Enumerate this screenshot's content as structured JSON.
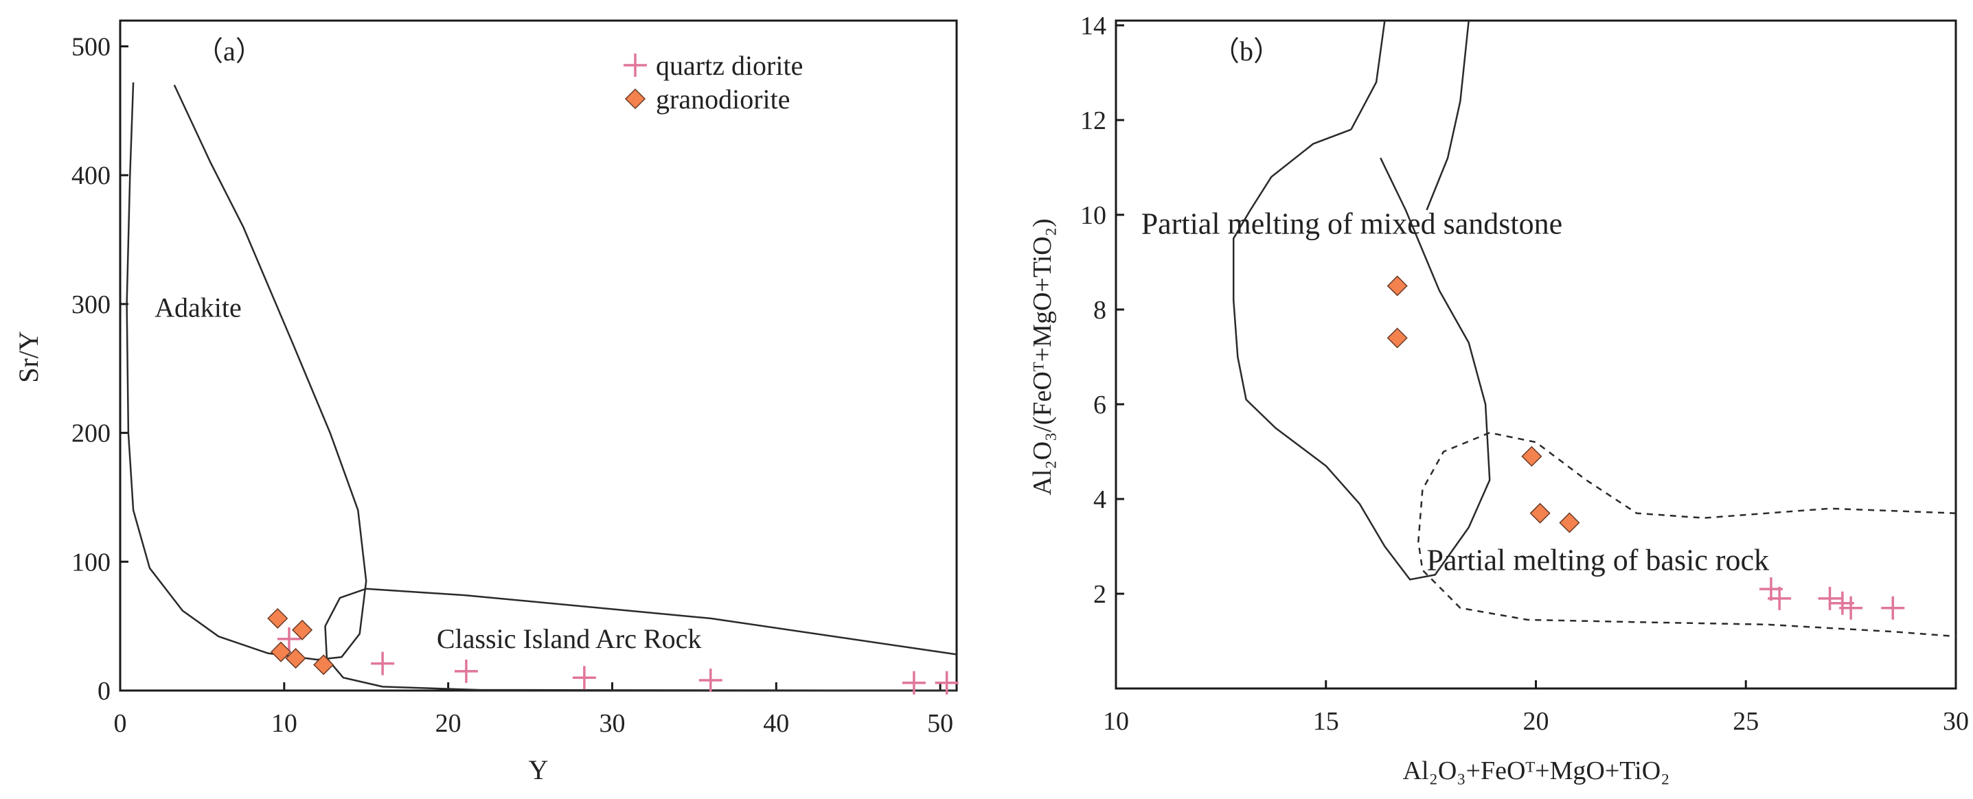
{
  "colors": {
    "axis": "#1a1a1a",
    "curve": "#2a2a2a",
    "quartz_diorite": "#e0769a",
    "granodiorite_fill": "#f4824f",
    "granodiorite_edge": "#6a3a25"
  },
  "chart_data": [
    {
      "type": "scatter",
      "panel_label": "（a）",
      "xlabel": "Y",
      "ylabel": "Sr/Y",
      "xlim": [
        0,
        51
      ],
      "ylim": [
        0,
        520
      ],
      "xticks": [
        0,
        10,
        20,
        30,
        40,
        50
      ],
      "yticks": [
        0,
        100,
        200,
        300,
        400,
        500
      ],
      "legend": {
        "position": "top-right",
        "entries": [
          {
            "name": "quartz diorite",
            "marker": "plus"
          },
          {
            "name": "granodiorite",
            "marker": "diamond"
          }
        ]
      },
      "annotations": [
        {
          "text": "Adakite",
          "x": 2.1,
          "y": 290
        },
        {
          "text": "Classic Island Arc Rock",
          "x": 19.3,
          "y": 33
        }
      ],
      "series": [
        {
          "name": "quartz diorite",
          "marker": "plus",
          "points": [
            [
              10.3,
              40
            ],
            [
              16,
              21
            ],
            [
              21.1,
              15
            ],
            [
              28.3,
              10
            ],
            [
              36,
              8
            ],
            [
              48.4,
              6
            ],
            [
              50.4,
              6
            ]
          ]
        },
        {
          "name": "granodiorite",
          "marker": "diamond",
          "points": [
            [
              9.6,
              56
            ],
            [
              11.1,
              47
            ],
            [
              9.8,
              30
            ],
            [
              10.7,
              25
            ],
            [
              12.4,
              20
            ]
          ]
        }
      ],
      "fields": [
        {
          "name": "Adakite field",
          "dashed": false,
          "points": [
            [
              0.8,
              472
            ],
            [
              0.6,
              400
            ],
            [
              0.4,
              300
            ],
            [
              0.5,
              200
            ],
            [
              0.8,
              140
            ],
            [
              1.8,
              95
            ],
            [
              3.8,
              62
            ],
            [
              6,
              42
            ],
            [
              9,
              29
            ],
            [
              12,
              24
            ],
            [
              13.5,
              26
            ],
            [
              14.6,
              44
            ],
            [
              15,
              85
            ],
            [
              14.5,
              140
            ],
            [
              12.8,
              200
            ],
            [
              10.5,
              270
            ],
            [
              7.5,
              360
            ],
            [
              5.5,
              410
            ],
            [
              3.3,
              470
            ]
          ]
        },
        {
          "name": "Classic Island Arc Rock field",
          "dashed": false,
          "points": [
            [
              51,
              28
            ],
            [
              36,
              56
            ],
            [
              21,
              74
            ],
            [
              15,
              79
            ],
            [
              13.4,
              72
            ],
            [
              12.5,
              50
            ],
            [
              12.6,
              25
            ],
            [
              13.6,
              10
            ],
            [
              16,
              3
            ],
            [
              22,
              0.5
            ],
            [
              51,
              0
            ]
          ]
        }
      ]
    },
    {
      "type": "scatter",
      "panel_label": "（b）",
      "xlabel": "Al₂O₃+FeOᵀ+MgO+TiO₂",
      "ylabel": "Al₂O₃/(FeOᵀ+MgO+TiO₂)",
      "xlim": [
        10,
        30
      ],
      "ylim": [
        0,
        14.1
      ],
      "xticks": [
        10,
        15,
        20,
        25,
        30
      ],
      "yticks": [
        2,
        4,
        6,
        8,
        10,
        12,
        14
      ],
      "annotations": [
        {
          "text": "Partial melting of mixed sandstone",
          "x": 10.6,
          "y": 9.6
        },
        {
          "text": "Partial melting of basic rock",
          "x": 17.4,
          "y": 2.5
        }
      ],
      "series": [
        {
          "name": "quartz diorite",
          "marker": "plus",
          "points": [
            [
              25.6,
              2.1
            ],
            [
              25.8,
              1.9
            ],
            [
              27,
              1.9
            ],
            [
              27.3,
              1.8
            ],
            [
              27.5,
              1.7
            ],
            [
              28.5,
              1.7
            ]
          ]
        },
        {
          "name": "granodiorite",
          "marker": "diamond",
          "points": [
            [
              16.7,
              8.5
            ],
            [
              16.7,
              7.4
            ],
            [
              19.9,
              4.9
            ],
            [
              20.1,
              3.7
            ],
            [
              20.8,
              3.5
            ]
          ]
        }
      ],
      "fields": [
        {
          "name": "mixed sandstone field",
          "dashed": false,
          "points": [
            [
              15.6,
              11.8
            ],
            [
              14.7,
              11.5
            ],
            [
              13.7,
              10.8
            ],
            [
              13.2,
              10.1
            ],
            [
              12.8,
              9.5
            ],
            [
              12.8,
              8.2
            ],
            [
              12.9,
              7
            ],
            [
              13.1,
              6.1
            ],
            [
              13.8,
              5.5
            ],
            [
              15,
              4.7
            ],
            [
              15.8,
              3.9
            ],
            [
              16.4,
              3
            ],
            [
              17,
              2.3
            ],
            [
              17.6,
              2.4
            ],
            [
              18.4,
              3.4
            ],
            [
              18.9,
              4.4
            ],
            [
              18.8,
              6
            ],
            [
              18.4,
              7.3
            ],
            [
              17.7,
              8.4
            ],
            [
              16.9,
              10.1
            ],
            [
              16.3,
              11.2
            ]
          ]
        },
        {
          "name": "mixed sandstone upper bound left",
          "dashed": false,
          "points": [
            [
              15.6,
              11.8
            ],
            [
              16.2,
              12.8
            ],
            [
              16.4,
              14.1
            ]
          ]
        },
        {
          "name": "mixed sandstone upper bound right",
          "dashed": false,
          "points": [
            [
              17.4,
              10.1
            ],
            [
              17.9,
              11.2
            ],
            [
              18.2,
              12.4
            ],
            [
              18.4,
              14.1
            ]
          ]
        },
        {
          "name": "basic rock field",
          "dashed": true,
          "points": [
            [
              30,
              3.7
            ],
            [
              27,
              3.8
            ],
            [
              24,
              3.6
            ],
            [
              22.4,
              3.7
            ],
            [
              21.2,
              4.4
            ],
            [
              20,
              5.2
            ],
            [
              18.9,
              5.4
            ],
            [
              17.8,
              5
            ],
            [
              17.3,
              4.2
            ],
            [
              17.2,
              3.1
            ],
            [
              17.3,
              2.5
            ],
            [
              18.2,
              1.7
            ],
            [
              19.8,
              1.45
            ],
            [
              22.5,
              1.4
            ],
            [
              25.5,
              1.35
            ],
            [
              28.5,
              1.2
            ],
            [
              30,
              1.1
            ]
          ]
        }
      ]
    }
  ]
}
